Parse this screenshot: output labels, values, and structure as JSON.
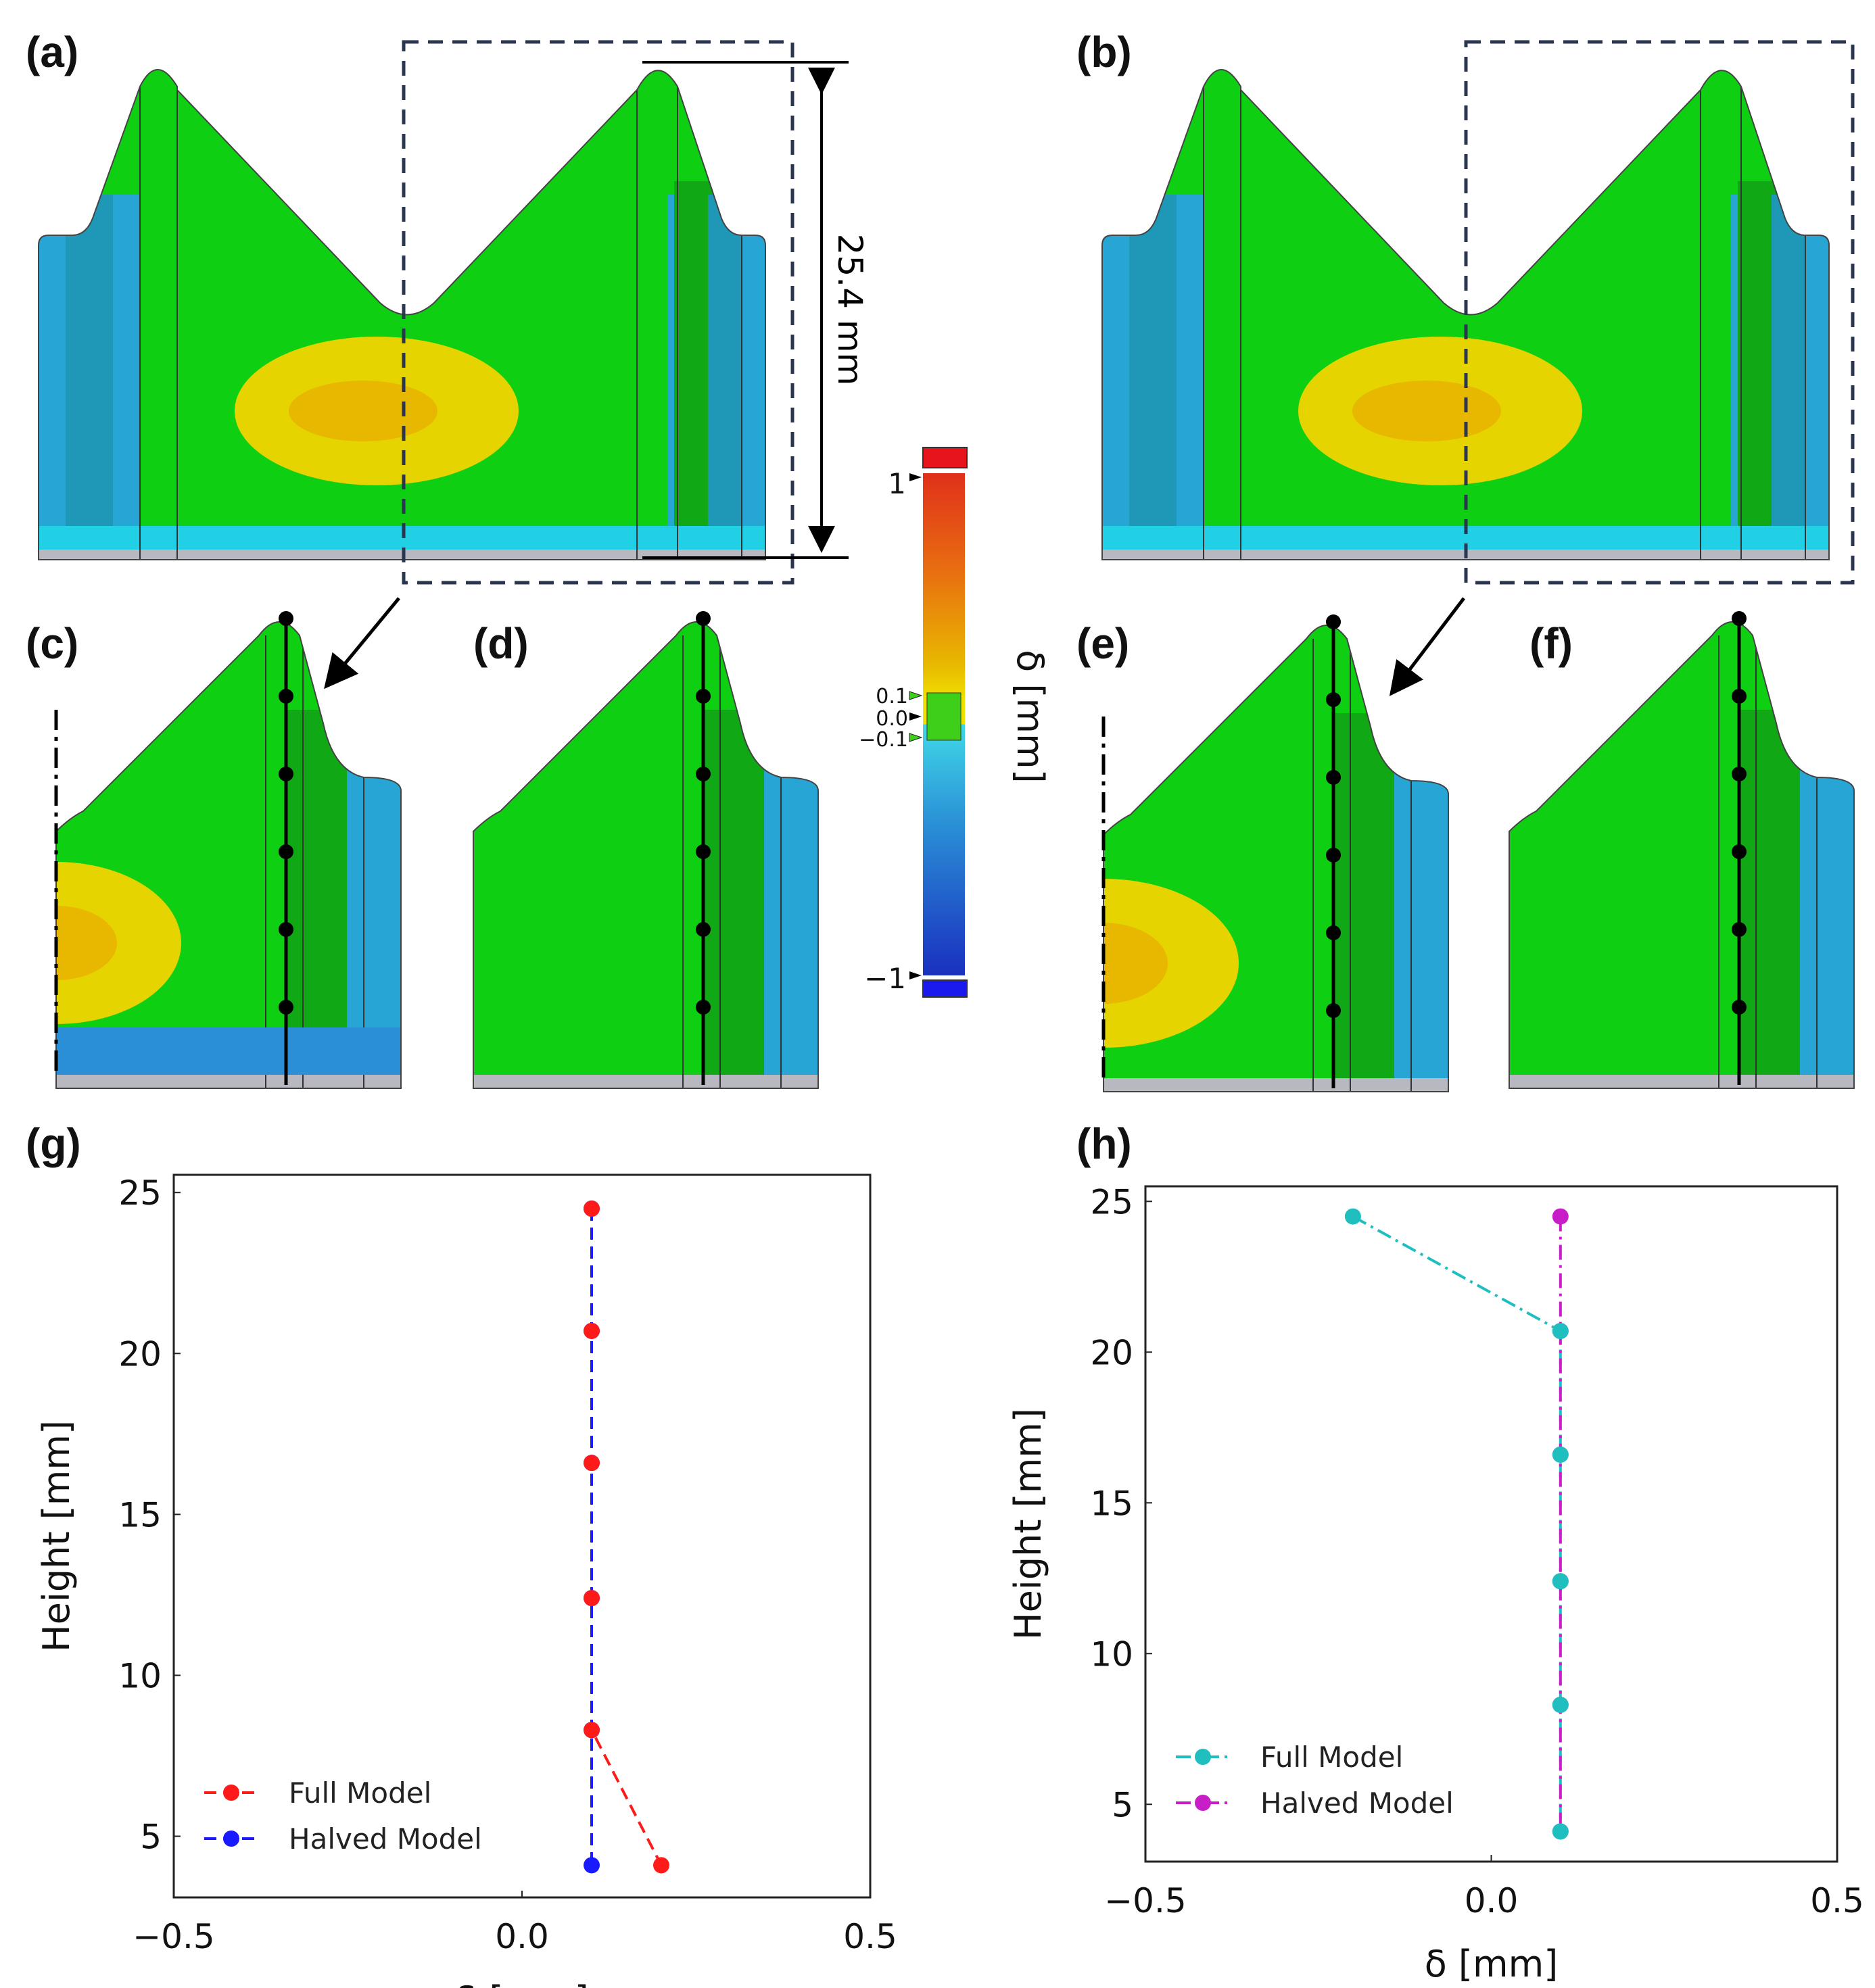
{
  "panels": {
    "a": "(a)",
    "b": "(b)",
    "c": "(c)",
    "d": "(d)",
    "e": "(e)",
    "f": "(f)",
    "g": "(g)",
    "h": "(h)"
  },
  "dimension_label": "25.4 mm",
  "colorbar": {
    "label": "δ [mm]",
    "ticks": [
      "1",
      "0.1",
      "0.0",
      "−0.1",
      "−1"
    ],
    "range": [
      -1,
      1
    ],
    "colors": {
      "high": "#e8141c",
      "low": "#1a2be8",
      "nominal": "#2ecf1a"
    }
  },
  "colors": {
    "part_green": "#0fcf12",
    "part_dark_green": "#10a814",
    "part_blue": "#27a6d6",
    "part_cyan": "#22d0e6",
    "part_yellow": "#e6d400",
    "part_orange": "#e8b800",
    "base_gray": "#b8b8c0"
  },
  "chart_data": [
    {
      "type": "line",
      "panel": "(g)",
      "xlabel": "δ [mm]",
      "ylabel": "Height [mm]",
      "xlim": [
        -0.5,
        0.5
      ],
      "ylim": [
        3.1,
        25.55
      ],
      "xticks": [
        "−0.5",
        "0.0",
        "0.5"
      ],
      "yticks": [
        "5",
        "10",
        "15",
        "20",
        "25"
      ],
      "grid": false,
      "legend": "bottom-left",
      "series": [
        {
          "name": "Full Model",
          "color": "#ff1a1a",
          "dash": "dashed",
          "x": [
            0.1,
            0.1,
            0.1,
            0.1,
            0.1,
            0.2
          ],
          "y": [
            24.5,
            20.7,
            16.6,
            12.4,
            8.3,
            4.1
          ]
        },
        {
          "name": "Halved Model",
          "color": "#1a1aff",
          "dash": "dashed",
          "x": [
            0.1,
            0.1,
            0.1,
            0.1,
            0.1,
            0.1
          ],
          "y": [
            24.5,
            20.7,
            16.6,
            12.4,
            8.3,
            4.1
          ]
        }
      ]
    },
    {
      "type": "line",
      "panel": "(h)",
      "xlabel": "δ [mm]",
      "ylabel": "Height [mm]",
      "xlim": [
        -0.5,
        0.5
      ],
      "ylim": [
        3.1,
        25.5
      ],
      "xticks": [
        "−0.5",
        "0.0",
        "0.5"
      ],
      "yticks": [
        "5",
        "10",
        "15",
        "20",
        "25"
      ],
      "grid": false,
      "legend": "bottom-left",
      "series": [
        {
          "name": "Full Model",
          "color": "#1fbfbf",
          "dash": "dashdot",
          "x": [
            -0.2,
            0.1,
            0.1,
            0.1,
            0.1,
            0.1
          ],
          "y": [
            24.5,
            20.7,
            16.6,
            12.4,
            8.3,
            4.1
          ]
        },
        {
          "name": "Halved Model",
          "color": "#c81ec8",
          "dash": "dashdot",
          "x": [
            0.1,
            0.1,
            0.1,
            0.1,
            0.1,
            0.1
          ],
          "y": [
            24.5,
            20.7,
            16.6,
            12.4,
            8.3,
            4.1
          ]
        }
      ]
    }
  ]
}
